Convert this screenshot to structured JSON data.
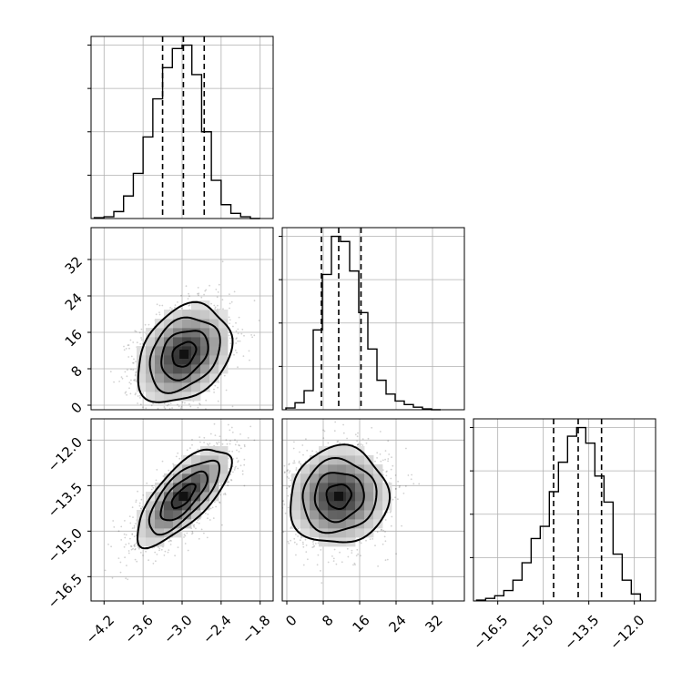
{
  "chart_data": {
    "type": "corner",
    "parameters": [
      {
        "id": "p0",
        "label": "",
        "range": [
          -4.4,
          -1.6
        ],
        "ticks": [
          -4.2,
          -3.6,
          -3.0,
          -2.4,
          -1.8
        ],
        "tick_labels": [
          "−4.2",
          "−3.6",
          "−3.0",
          "−2.4",
          "−1.8"
        ],
        "quantiles": [
          -3.3,
          -2.98,
          -2.66
        ],
        "hist": {
          "bins": [
            -4.35,
            -4.2,
            -4.05,
            -3.9,
            -3.75,
            -3.6,
            -3.45,
            -3.3,
            -3.15,
            -3.0,
            -2.85,
            -2.7,
            -2.55,
            -2.4,
            -2.25,
            -2.1,
            -1.95,
            -1.8
          ],
          "counts": [
            0.005,
            0.01,
            0.04,
            0.13,
            0.26,
            0.47,
            0.69,
            0.87,
            0.98,
            1.0,
            0.83,
            0.5,
            0.22,
            0.08,
            0.03,
            0.01,
            0.0
          ]
        }
      },
      {
        "id": "p1",
        "label": "",
        "range": [
          -1,
          39
        ],
        "ticks": [
          0,
          8,
          16,
          24,
          32
        ],
        "tick_labels": [
          "0",
          "8",
          "16",
          "24",
          "32"
        ],
        "quantiles": [
          7.6,
          11.4,
          16.3
        ],
        "hist": {
          "bins": [
            -0.2,
            1.8,
            3.8,
            5.8,
            7.8,
            9.8,
            11.8,
            13.8,
            15.8,
            17.8,
            19.8,
            21.8,
            23.8,
            25.8,
            27.8,
            29.8,
            31.8,
            33.8
          ],
          "counts": [
            0.01,
            0.04,
            0.11,
            0.46,
            0.78,
            1.0,
            0.97,
            0.8,
            0.56,
            0.35,
            0.17,
            0.09,
            0.05,
            0.03,
            0.015,
            0.005,
            0.0
          ]
        }
      },
      {
        "id": "p2",
        "label": "",
        "range": [
          -17.3,
          -11.3
        ],
        "ticks": [
          -16.5,
          -15.0,
          -13.5,
          -12.0
        ],
        "tick_labels": [
          "−16.5",
          "−15.0",
          "−13.5",
          "−12.0"
        ],
        "quantiles": [
          -14.66,
          -13.85,
          -13.08
        ],
        "hist": {
          "bins": [
            -17.2,
            -16.9,
            -16.6,
            -16.3,
            -16.0,
            -15.7,
            -15.4,
            -15.1,
            -14.8,
            -14.5,
            -14.2,
            -13.9,
            -13.6,
            -13.3,
            -13.0,
            -12.7,
            -12.4,
            -12.1,
            -11.8
          ],
          "counts": [
            0.005,
            0.015,
            0.03,
            0.06,
            0.12,
            0.22,
            0.36,
            0.43,
            0.63,
            0.8,
            0.95,
            1.0,
            0.91,
            0.72,
            0.57,
            0.27,
            0.12,
            0.04
          ]
        }
      }
    ],
    "pairs": [
      {
        "x": "p0",
        "y": "p1",
        "center": [
          -2.97,
          11.2
        ],
        "sd": [
          0.36,
          5.4
        ],
        "rho": 0.3
      },
      {
        "x": "p0",
        "y": "p2",
        "center": [
          -2.98,
          -13.85
        ],
        "sd": [
          0.36,
          0.8
        ],
        "rho": 0.72
      },
      {
        "x": "p1",
        "y": "p2",
        "center": [
          11.4,
          -13.85
        ],
        "sd": [
          5.4,
          0.8
        ],
        "rho": 0.05
      }
    ],
    "contour_levels_sigma": [
      0.5,
      1.0,
      1.5,
      2.0
    ],
    "grid": true,
    "title": ""
  }
}
